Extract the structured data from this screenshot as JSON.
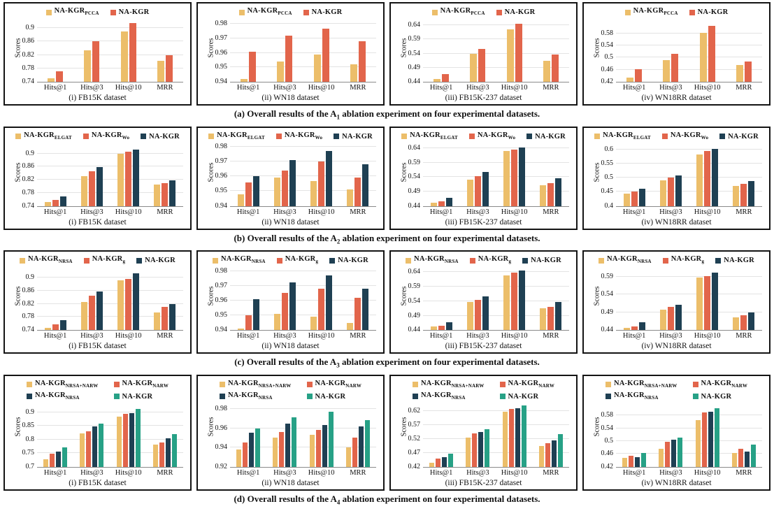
{
  "figure_name": "NA-KGR ablation experiments",
  "colors": {
    "variant1": "#ECBE6A",
    "variant2": "#E2654B",
    "variant3": "#1F4053",
    "full_model": "#27A186"
  },
  "captions": [
    {
      "row": "a",
      "prefix": "(a) Overall results of the A",
      "sub": "1",
      "suffix": " ablation experiment on four experimental datasets."
    },
    {
      "row": "b",
      "prefix": "(b) Overall results of the A",
      "sub": "2",
      "suffix": " ablation experiment on four experimental datasets."
    },
    {
      "row": "c",
      "prefix": "(c) Overall results of the A",
      "sub": "3",
      "suffix": " ablation experiment on four experimental datasets."
    },
    {
      "row": "d",
      "prefix": "(d) Overall results of the A",
      "sub": "4",
      "suffix": " ablation experiment on four experimental datasets."
    }
  ],
  "chart_data": [
    {
      "row": "a",
      "type": "bar",
      "title": "(i) FB15K dataset",
      "ylabel": "Scores",
      "categories": [
        "Hits@1",
        "Hits@3",
        "Hits@10",
        "MRR"
      ],
      "ylim": [
        0.74,
        0.925
      ],
      "yticks": [
        0.74,
        0.78,
        0.82,
        0.86,
        0.9
      ],
      "series": [
        {
          "name": "NA-KGR",
          "sub": "PCCA",
          "color": "#ECBE6A",
          "values": [
            0.751,
            0.834,
            0.89,
            0.802
          ]
        },
        {
          "name": "NA-KGR",
          "sub": "",
          "color": "#E2654B",
          "values": [
            0.772,
            0.86,
            0.914,
            0.82
          ]
        }
      ]
    },
    {
      "row": "a",
      "type": "bar",
      "title": "(ii) WN18 dataset",
      "ylabel": "Scores",
      "categories": [
        "Hits@1",
        "Hits@3",
        "Hits@10",
        "MRR"
      ],
      "ylim": [
        0.94,
        0.983
      ],
      "yticks": [
        0.94,
        0.95,
        0.96,
        0.97,
        0.98
      ],
      "series": [
        {
          "name": "NA-KGR",
          "sub": "PCCA",
          "color": "#ECBE6A",
          "values": [
            0.942,
            0.954,
            0.959,
            0.952
          ]
        },
        {
          "name": "NA-KGR",
          "sub": "",
          "color": "#E2654B",
          "values": [
            0.961,
            0.972,
            0.977,
            0.968
          ]
        }
      ]
    },
    {
      "row": "a",
      "type": "bar",
      "title": "(iii) FB15K-237 dataset",
      "ylabel": "Scores",
      "categories": [
        "Hits@1",
        "Hits@3",
        "Hits@10",
        "MRR"
      ],
      "ylim": [
        0.44,
        0.66
      ],
      "yticks": [
        0.44,
        0.49,
        0.54,
        0.59,
        0.64
      ],
      "series": [
        {
          "name": "NA-KGR",
          "sub": "PCCA",
          "color": "#ECBE6A",
          "values": [
            0.449,
            0.54,
            0.625,
            0.514
          ]
        },
        {
          "name": "NA-KGR",
          "sub": "",
          "color": "#E2654B",
          "values": [
            0.468,
            0.556,
            0.645,
            0.537
          ]
        }
      ]
    },
    {
      "row": "a",
      "type": "bar",
      "title": "(iv) WN18RR dataset",
      "ylabel": "Scores",
      "categories": [
        "Hits@1",
        "Hits@3",
        "Hits@10",
        "MRR"
      ],
      "ylim": [
        0.42,
        0.625
      ],
      "yticks": [
        0.42,
        0.46,
        0.5,
        0.54,
        0.58
      ],
      "series": [
        {
          "name": "NA-KGR",
          "sub": "PCCA",
          "color": "#ECBE6A",
          "values": [
            0.435,
            0.492,
            0.581,
            0.475
          ]
        },
        {
          "name": "NA-KGR",
          "sub": "",
          "color": "#E2654B",
          "values": [
            0.462,
            0.512,
            0.605,
            0.488
          ]
        }
      ]
    },
    {
      "row": "b",
      "type": "bar",
      "title": "(i) FB15K dataset",
      "ylabel": "Scores",
      "categories": [
        "Hits@1",
        "Hits@3",
        "Hits@10",
        "MRR"
      ],
      "ylim": [
        0.74,
        0.93
      ],
      "yticks": [
        0.74,
        0.78,
        0.82,
        0.86,
        0.9
      ],
      "series": [
        {
          "name": "NA-KGR",
          "sub": "ELGAT",
          "color": "#ECBE6A",
          "values": [
            0.752,
            0.83,
            0.9,
            0.805
          ]
        },
        {
          "name": "NA-KGR",
          "sub": "Wo",
          "color": "#E2654B",
          "values": [
            0.758,
            0.845,
            0.905,
            0.81
          ]
        },
        {
          "name": "NA-KGR",
          "sub": "",
          "color": "#1F4053",
          "values": [
            0.77,
            0.859,
            0.913,
            0.819
          ]
        }
      ]
    },
    {
      "row": "b",
      "type": "bar",
      "title": "(ii) WN18 dataset",
      "ylabel": "Scores",
      "categories": [
        "Hits@1",
        "Hits@3",
        "Hits@10",
        "MRR"
      ],
      "ylim": [
        0.94,
        0.982
      ],
      "yticks": [
        0.94,
        0.95,
        0.96,
        0.97,
        0.98
      ],
      "series": [
        {
          "name": "NA-KGR",
          "sub": "ELGAT",
          "color": "#ECBE6A",
          "values": [
            0.948,
            0.959,
            0.957,
            0.951
          ]
        },
        {
          "name": "NA-KGR",
          "sub": "Wo",
          "color": "#E2654B",
          "values": [
            0.956,
            0.964,
            0.97,
            0.959
          ]
        },
        {
          "name": "NA-KGR",
          "sub": "",
          "color": "#1F4053",
          "values": [
            0.96,
            0.971,
            0.977,
            0.968
          ]
        }
      ]
    },
    {
      "row": "b",
      "type": "bar",
      "title": "(iii) FB15K-237 dataset",
      "ylabel": "Scores",
      "categories": [
        "Hits@1",
        "Hits@3",
        "Hits@10",
        "MRR"
      ],
      "ylim": [
        0.44,
        0.655
      ],
      "yticks": [
        0.44,
        0.49,
        0.54,
        0.59,
        0.64
      ],
      "series": [
        {
          "name": "NA-KGR",
          "sub": "ELGAT",
          "color": "#ECBE6A",
          "values": [
            0.451,
            0.531,
            0.63,
            0.512
          ]
        },
        {
          "name": "NA-KGR",
          "sub": "Wo",
          "color": "#E2654B",
          "values": [
            0.457,
            0.544,
            0.634,
            0.52
          ]
        },
        {
          "name": "NA-KGR",
          "sub": "",
          "color": "#1F4053",
          "values": [
            0.468,
            0.558,
            0.641,
            0.536
          ]
        }
      ]
    },
    {
      "row": "b",
      "type": "bar",
      "title": "(iv) WN18RR dataset",
      "ylabel": "Scores",
      "categories": [
        "Hits@1",
        "Hits@3",
        "Hits@10",
        "MRR"
      ],
      "ylim": [
        0.4,
        0.62
      ],
      "yticks": [
        0.4,
        0.45,
        0.5,
        0.55,
        0.6
      ],
      "series": [
        {
          "name": "NA-KGR",
          "sub": "ELGAT",
          "color": "#ECBE6A",
          "values": [
            0.443,
            0.49,
            0.583,
            0.47
          ]
        },
        {
          "name": "NA-KGR",
          "sub": "Wo",
          "color": "#E2654B",
          "values": [
            0.451,
            0.5,
            0.594,
            0.478
          ]
        },
        {
          "name": "NA-KGR",
          "sub": "",
          "color": "#1F4053",
          "values": [
            0.462,
            0.509,
            0.601,
            0.488
          ]
        }
      ]
    },
    {
      "row": "c",
      "type": "bar",
      "title": "(i) FB15K dataset",
      "ylabel": "Scores",
      "categories": [
        "Hits@1",
        "Hits@3",
        "Hits@10",
        "MRR"
      ],
      "ylim": [
        0.74,
        0.93
      ],
      "yticks": [
        0.74,
        0.78,
        0.82,
        0.86,
        0.9
      ],
      "series": [
        {
          "name": "NA-KGR",
          "sub": "NRSA",
          "color": "#ECBE6A",
          "values": [
            0.746,
            0.825,
            0.893,
            0.793
          ]
        },
        {
          "name": "NA-KGR",
          "sub": "g",
          "color": "#E2654B",
          "values": [
            0.758,
            0.846,
            0.897,
            0.81
          ]
        },
        {
          "name": "NA-KGR",
          "sub": "",
          "color": "#1F4053",
          "values": [
            0.771,
            0.859,
            0.913,
            0.819
          ]
        }
      ]
    },
    {
      "row": "c",
      "type": "bar",
      "title": "(ii) WN18 dataset",
      "ylabel": "Scores",
      "categories": [
        "Hits@1",
        "Hits@3",
        "Hits@10",
        "MRR"
      ],
      "ylim": [
        0.94,
        0.982
      ],
      "yticks": [
        0.94,
        0.95,
        0.96,
        0.97,
        0.98
      ],
      "series": [
        {
          "name": "NA-KGR",
          "sub": "NRSA",
          "color": "#ECBE6A",
          "values": [
            0.941,
            0.951,
            0.949,
            0.945
          ]
        },
        {
          "name": "NA-KGR",
          "sub": "g",
          "color": "#E2654B",
          "values": [
            0.95,
            0.965,
            0.968,
            0.962
          ]
        },
        {
          "name": "NA-KGR",
          "sub": "",
          "color": "#1F4053",
          "values": [
            0.961,
            0.972,
            0.977,
            0.968
          ]
        }
      ]
    },
    {
      "row": "c",
      "type": "bar",
      "title": "(iii) FB15K-237 dataset",
      "ylabel": "Scores",
      "categories": [
        "Hits@1",
        "Hits@3",
        "Hits@10",
        "MRR"
      ],
      "ylim": [
        0.44,
        0.655
      ],
      "yticks": [
        0.44,
        0.49,
        0.54,
        0.59,
        0.64
      ],
      "series": [
        {
          "name": "NA-KGR",
          "sub": "NRSA",
          "color": "#ECBE6A",
          "values": [
            0.452,
            0.537,
            0.63,
            0.516
          ]
        },
        {
          "name": "NA-KGR",
          "sub": "g",
          "color": "#E2654B",
          "values": [
            0.456,
            0.544,
            0.638,
            0.521
          ]
        },
        {
          "name": "NA-KGR",
          "sub": "",
          "color": "#1F4053",
          "values": [
            0.468,
            0.556,
            0.645,
            0.537
          ]
        }
      ]
    },
    {
      "row": "c",
      "type": "bar",
      "title": "(iv) WN18RR dataset",
      "ylabel": "Scores",
      "categories": [
        "Hits@1",
        "Hits@3",
        "Hits@10",
        "MRR"
      ],
      "ylim": [
        0.44,
        0.615
      ],
      "yticks": [
        0.44,
        0.49,
        0.54,
        0.59
      ],
      "series": [
        {
          "name": "NA-KGR",
          "sub": "NRSA",
          "color": "#ECBE6A",
          "values": [
            0.447,
            0.497,
            0.588,
            0.476
          ]
        },
        {
          "name": "NA-KGR",
          "sub": "g",
          "color": "#E2654B",
          "values": [
            0.451,
            0.506,
            0.592,
            0.482
          ]
        },
        {
          "name": "NA-KGR",
          "sub": "",
          "color": "#1F4053",
          "values": [
            0.463,
            0.511,
            0.601,
            0.489
          ]
        }
      ]
    },
    {
      "row": "d",
      "type": "bar",
      "title": "(i) FB15K dataset",
      "ylabel": "Scores",
      "categories": [
        "Hits@1",
        "Hits@3",
        "Hits@10",
        "MRR"
      ],
      "ylim": [
        0.7,
        0.93
      ],
      "yticks": [
        0.7,
        0.75,
        0.8,
        0.85,
        0.9
      ],
      "series": [
        {
          "name": "NA-KGR",
          "sub": "NRSA+NARW",
          "color": "#ECBE6A",
          "values": [
            0.727,
            0.822,
            0.883,
            0.782
          ]
        },
        {
          "name": "NA-KGR",
          "sub": "NARW",
          "color": "#E2654B",
          "values": [
            0.748,
            0.831,
            0.894,
            0.789
          ]
        },
        {
          "name": "NA-KGR",
          "sub": "NRSA",
          "color": "#1F4053",
          "values": [
            0.757,
            0.849,
            0.897,
            0.805
          ]
        },
        {
          "name": "NA-KGR",
          "sub": "",
          "color": "#27A186",
          "values": [
            0.771,
            0.858,
            0.913,
            0.819
          ]
        }
      ]
    },
    {
      "row": "d",
      "type": "bar",
      "title": "(ii) WN18 dataset",
      "ylabel": "Scores",
      "categories": [
        "Hits@1",
        "Hits@3",
        "Hits@10",
        "MRR"
      ],
      "ylim": [
        0.92,
        0.985
      ],
      "yticks": [
        0.92,
        0.94,
        0.96,
        0.98
      ],
      "series": [
        {
          "name": "NA-KGR",
          "sub": "NRSA+NARW",
          "color": "#ECBE6A",
          "values": [
            0.938,
            0.95,
            0.953,
            0.94
          ]
        },
        {
          "name": "NA-KGR",
          "sub": "NARW",
          "color": "#E2654B",
          "values": [
            0.945,
            0.956,
            0.958,
            0.95
          ]
        },
        {
          "name": "NA-KGR",
          "sub": "NRSA",
          "color": "#1F4053",
          "values": [
            0.955,
            0.965,
            0.963,
            0.962
          ]
        },
        {
          "name": "NA-KGR",
          "sub": "",
          "color": "#27A186",
          "values": [
            0.96,
            0.971,
            0.977,
            0.968
          ]
        }
      ]
    },
    {
      "row": "d",
      "type": "bar",
      "title": "(iii) FB15K-237 dataset",
      "ylabel": "Scores",
      "categories": [
        "Hits@1",
        "Hits@3",
        "Hits@10",
        "MRR"
      ],
      "ylim": [
        0.42,
        0.645
      ],
      "yticks": [
        0.42,
        0.47,
        0.52,
        0.57,
        0.62
      ],
      "series": [
        {
          "name": "NA-KGR",
          "sub": "NRSA+NARW",
          "color": "#ECBE6A",
          "values": [
            0.435,
            0.525,
            0.618,
            0.495
          ]
        },
        {
          "name": "NA-KGR",
          "sub": "NARW",
          "color": "#E2654B",
          "values": [
            0.45,
            0.54,
            0.627,
            0.505
          ]
        },
        {
          "name": "NA-KGR",
          "sub": "NRSA",
          "color": "#1F4053",
          "values": [
            0.455,
            0.546,
            0.63,
            0.515
          ]
        },
        {
          "name": "NA-KGR",
          "sub": "",
          "color": "#27A186",
          "values": [
            0.468,
            0.556,
            0.641,
            0.536
          ]
        }
      ]
    },
    {
      "row": "d",
      "type": "bar",
      "title": "(iv) WN18RR dataset",
      "ylabel": "Scores",
      "categories": [
        "Hits@1",
        "Hits@3",
        "Hits@10",
        "MRR"
      ],
      "ylim": [
        0.42,
        0.615
      ],
      "yticks": [
        0.42,
        0.46,
        0.5,
        0.54,
        0.58
      ],
      "series": [
        {
          "name": "NA-KGR",
          "sub": "NRSA+NARW",
          "color": "#ECBE6A",
          "values": [
            0.447,
            0.476,
            0.565,
            0.463
          ]
        },
        {
          "name": "NA-KGR",
          "sub": "NARW",
          "color": "#E2654B",
          "values": [
            0.455,
            0.498,
            0.588,
            0.475
          ]
        },
        {
          "name": "NA-KGR",
          "sub": "NRSA",
          "color": "#1F4053",
          "values": [
            0.45,
            0.505,
            0.592,
            0.468
          ]
        },
        {
          "name": "NA-KGR",
          "sub": "",
          "color": "#27A186",
          "values": [
            0.462,
            0.51,
            0.601,
            0.488
          ]
        }
      ]
    }
  ]
}
